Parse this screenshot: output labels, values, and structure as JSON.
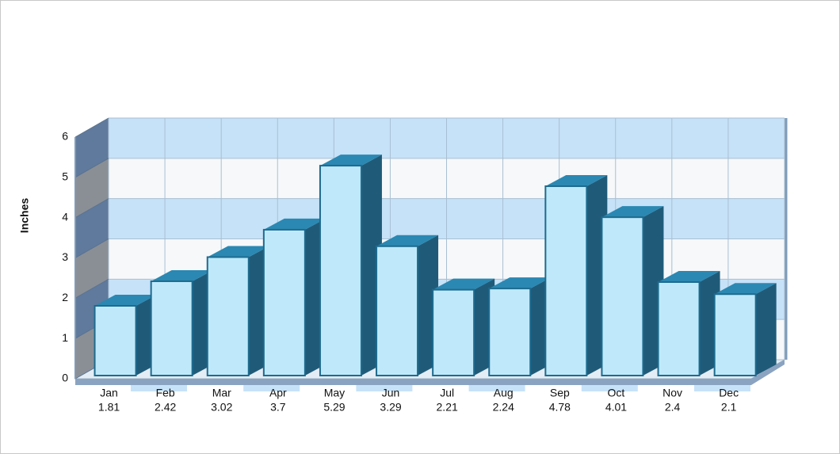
{
  "chart_data": {
    "type": "bar3d",
    "y_axis_label": "Inches",
    "categories": [
      "Jan",
      "Feb",
      "Mar",
      "Apr",
      "May",
      "Jun",
      "Jul",
      "Aug",
      "Sep",
      "Oct",
      "Nov",
      "Dec"
    ],
    "values": [
      1.81,
      2.42,
      3.02,
      3.7,
      5.29,
      3.29,
      2.21,
      2.24,
      4.78,
      4.01,
      2.4,
      2.1
    ],
    "color": "#bfe9fa",
    "ylim": [
      0,
      6
    ],
    "yticks": [
      0,
      1,
      2,
      3,
      4,
      5,
      6
    ],
    "grid": true
  }
}
